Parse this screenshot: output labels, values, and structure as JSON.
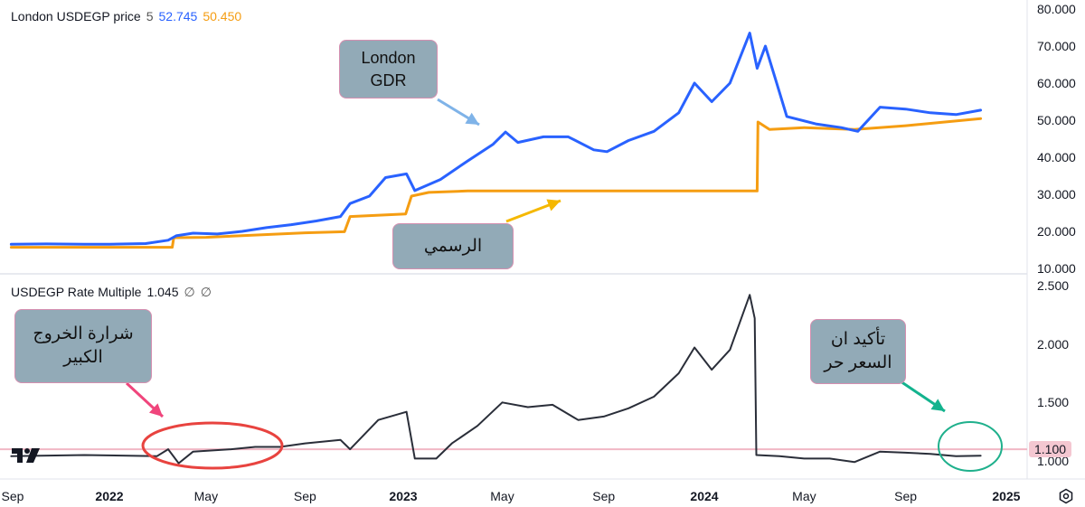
{
  "top_panel": {
    "symbol_label": "London USDEGP price",
    "interval": "5",
    "value_blue": "52.745",
    "value_orange": "50.450",
    "yticks": [
      "80.000",
      "70.000",
      "60.000",
      "50.000",
      "40.000",
      "30.000",
      "20.000",
      "10.000"
    ]
  },
  "bottom_panel": {
    "symbol_label": "USDEGP Rate Multiple",
    "value": "1.045",
    "extra1": "∅",
    "extra2": "∅",
    "yticks": [
      "2.500",
      "2.000",
      "1.500",
      "1.000"
    ],
    "badge_value": "1.100"
  },
  "xaxis": {
    "ticks": [
      {
        "label": "Sep",
        "bold": false
      },
      {
        "label": "2022",
        "bold": true
      },
      {
        "label": "May",
        "bold": false
      },
      {
        "label": "Sep",
        "bold": false
      },
      {
        "label": "2023",
        "bold": true
      },
      {
        "label": "May",
        "bold": false
      },
      {
        "label": "Sep",
        "bold": false
      },
      {
        "label": "2024",
        "bold": true
      },
      {
        "label": "May",
        "bold": false
      },
      {
        "label": "Sep",
        "bold": false
      },
      {
        "label": "2025",
        "bold": true
      }
    ]
  },
  "annotations": {
    "london_gdr": {
      "line1": "London",
      "line2": "GDR"
    },
    "official": {
      "text": "الرسمي"
    },
    "big_exit": {
      "line1": "شرارة الخروج",
      "line2": "الكبير"
    },
    "free_price": {
      "line1": "تأكيد ان",
      "line2": "السعر حر"
    }
  },
  "colors": {
    "blue": "#2962ff",
    "orange": "#f59d12",
    "ratio": "#2a2e39",
    "pink_line": "#f1b7c4",
    "box_fill": "#92aab7",
    "box_border": "#d58fb0",
    "arrow_blue": "#7fb3e8",
    "arrow_orange": "#f5b800",
    "arrow_pink": "#f0457c",
    "arrow_teal": "#13b38e",
    "ellipse_red": "#e8433f",
    "ellipse_teal": "#1fb08c"
  },
  "chart_data": [
    {
      "type": "line",
      "title": "London USDEGP price",
      "ylim": [
        10,
        80
      ],
      "series": [
        {
          "name": "London USDEGP price",
          "points": [
            [
              "2021-09-01",
              16.5
            ],
            [
              "2021-10-15",
              16.6
            ],
            [
              "2021-12-01",
              16.5
            ],
            [
              "2022-01-01",
              16.5
            ],
            [
              "2022-02-15",
              16.7
            ],
            [
              "2022-03-15",
              17.6
            ],
            [
              "2022-03-25",
              18.8
            ],
            [
              "2022-04-15",
              19.5
            ],
            [
              "2022-05-15",
              19.3
            ],
            [
              "2022-06-15",
              20.0
            ],
            [
              "2022-07-15",
              21.0
            ],
            [
              "2022-08-15",
              21.8
            ],
            [
              "2022-09-15",
              22.8
            ],
            [
              "2022-10-15",
              24.0
            ],
            [
              "2022-10-27",
              27.5
            ],
            [
              "2022-11-20",
              29.5
            ],
            [
              "2022-12-10",
              34.5
            ],
            [
              "2023-01-05",
              35.5
            ],
            [
              "2023-01-15",
              31.0
            ],
            [
              "2023-02-15",
              34.0
            ],
            [
              "2023-03-20",
              39.0
            ],
            [
              "2023-04-20",
              43.5
            ],
            [
              "2023-05-05",
              46.8
            ],
            [
              "2023-05-20",
              44.0
            ],
            [
              "2023-06-20",
              45.5
            ],
            [
              "2023-07-20",
              45.5
            ],
            [
              "2023-08-20",
              42.0
            ],
            [
              "2023-09-05",
              41.5
            ],
            [
              "2023-10-01",
              44.5
            ],
            [
              "2023-11-01",
              47.0
            ],
            [
              "2023-12-01",
              52.0
            ],
            [
              "2023-12-20",
              60.0
            ],
            [
              "2024-01-10",
              55.0
            ],
            [
              "2024-02-01",
              60.0
            ],
            [
              "2024-02-25",
              73.5
            ],
            [
              "2024-03-05",
              64.0
            ],
            [
              "2024-03-15",
              70.0
            ],
            [
              "2024-03-28",
              60.5
            ],
            [
              "2024-04-10",
              51.0
            ],
            [
              "2024-05-15",
              49.0
            ],
            [
              "2024-06-15",
              48.0
            ],
            [
              "2024-07-05",
              47.0
            ],
            [
              "2024-08-01",
              53.5
            ],
            [
              "2024-09-01",
              53.0
            ],
            [
              "2024-10-01",
              52.0
            ],
            [
              "2024-11-01",
              51.5
            ],
            [
              "2024-12-01",
              52.7
            ]
          ]
        },
        {
          "name": "Official",
          "points": [
            [
              "2021-09-01",
              15.7
            ],
            [
              "2022-03-20",
              15.7
            ],
            [
              "2022-03-22",
              18.3
            ],
            [
              "2022-05-01",
              18.4
            ],
            [
              "2022-09-01",
              19.6
            ],
            [
              "2022-10-20",
              19.9
            ],
            [
              "2022-10-27",
              24.0
            ],
            [
              "2023-01-04",
              24.7
            ],
            [
              "2023-01-11",
              29.5
            ],
            [
              "2023-02-01",
              30.5
            ],
            [
              "2023-03-20",
              30.9
            ],
            [
              "2024-03-05",
              30.9
            ],
            [
              "2024-03-06",
              49.5
            ],
            [
              "2024-03-20",
              47.5
            ],
            [
              "2024-05-01",
              48.0
            ],
            [
              "2024-07-01",
              47.5
            ],
            [
              "2024-09-01",
              48.5
            ],
            [
              "2024-12-01",
              50.45
            ]
          ]
        }
      ]
    },
    {
      "type": "line",
      "title": "USDEGP Rate Multiple",
      "ylim": [
        0.95,
        2.55
      ],
      "reference_line": 1.1,
      "series": [
        {
          "name": "USDEGP Rate Multiple",
          "points": [
            [
              "2021-09-01",
              1.04
            ],
            [
              "2021-12-01",
              1.05
            ],
            [
              "2022-03-01",
              1.04
            ],
            [
              "2022-03-15",
              1.1
            ],
            [
              "2022-03-28",
              0.98
            ],
            [
              "2022-04-15",
              1.08
            ],
            [
              "2022-06-01",
              1.1
            ],
            [
              "2022-07-01",
              1.12
            ],
            [
              "2022-08-01",
              1.12
            ],
            [
              "2022-09-01",
              1.15
            ],
            [
              "2022-10-15",
              1.18
            ],
            [
              "2022-10-27",
              1.1
            ],
            [
              "2022-12-01",
              1.35
            ],
            [
              "2023-01-05",
              1.42
            ],
            [
              "2023-01-15",
              1.02
            ],
            [
              "2023-02-10",
              1.02
            ],
            [
              "2023-03-01",
              1.15
            ],
            [
              "2023-04-01",
              1.3
            ],
            [
              "2023-05-01",
              1.5
            ],
            [
              "2023-06-01",
              1.46
            ],
            [
              "2023-07-01",
              1.48
            ],
            [
              "2023-08-01",
              1.35
            ],
            [
              "2023-09-01",
              1.38
            ],
            [
              "2023-10-01",
              1.45
            ],
            [
              "2023-11-01",
              1.55
            ],
            [
              "2023-12-01",
              1.75
            ],
            [
              "2023-12-20",
              1.97
            ],
            [
              "2024-01-10",
              1.78
            ],
            [
              "2024-02-01",
              1.95
            ],
            [
              "2024-02-25",
              2.42
            ],
            [
              "2024-03-02",
              2.22
            ],
            [
              "2024-03-04",
              1.05
            ],
            [
              "2024-04-01",
              1.04
            ],
            [
              "2024-05-01",
              1.02
            ],
            [
              "2024-06-01",
              1.02
            ],
            [
              "2024-07-01",
              0.99
            ],
            [
              "2024-08-01",
              1.08
            ],
            [
              "2024-09-01",
              1.07
            ],
            [
              "2024-10-01",
              1.06
            ],
            [
              "2024-11-01",
              1.04
            ],
            [
              "2024-12-01",
              1.045
            ]
          ]
        }
      ]
    }
  ]
}
